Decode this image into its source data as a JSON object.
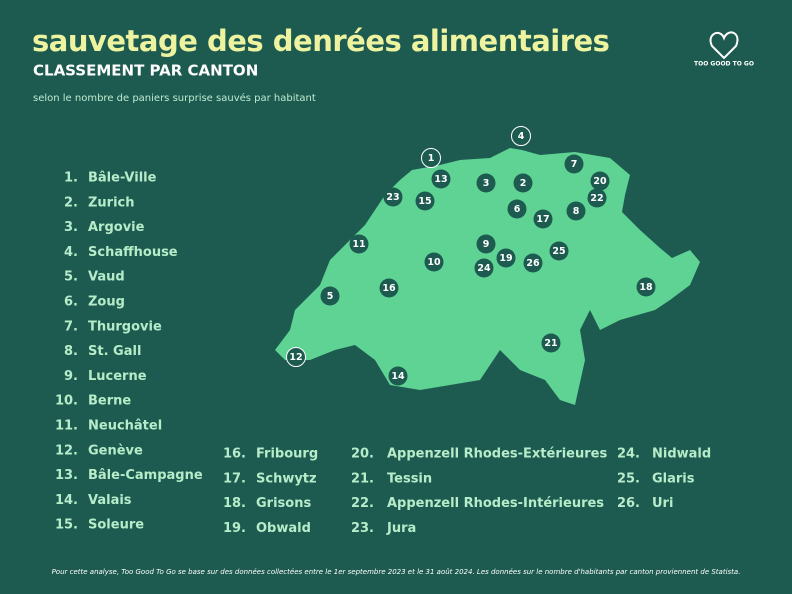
{
  "header": {
    "title": "sauvetage des denrées alimentaires",
    "subtitle": "CLASSEMENT PAR CANTON",
    "description": "selon le nombre de paniers surprise sauvés par habitant"
  },
  "logo": "TOO GOOD TO GO",
  "ranking": [
    {
      "rank": "1.",
      "name": "Bâle-Ville"
    },
    {
      "rank": "2.",
      "name": "Zurich"
    },
    {
      "rank": "3.",
      "name": "Argovie"
    },
    {
      "rank": "4.",
      "name": "Schaffhouse"
    },
    {
      "rank": "5.",
      "name": "Vaud"
    },
    {
      "rank": "6.",
      "name": "Zoug"
    },
    {
      "rank": "7.",
      "name": "Thurgovie"
    },
    {
      "rank": "8.",
      "name": "St. Gall"
    },
    {
      "rank": "9.",
      "name": "Lucerne"
    },
    {
      "rank": "10.",
      "name": "Berne"
    },
    {
      "rank": "11.",
      "name": "Neuchâtel"
    },
    {
      "rank": "12.",
      "name": "Genève"
    },
    {
      "rank": "13.",
      "name": "Bâle-Campagne"
    },
    {
      "rank": "14.",
      "name": "Valais"
    },
    {
      "rank": "15.",
      "name": "Soleure"
    },
    {
      "rank": "16.",
      "name": "Fribourg"
    },
    {
      "rank": "17.",
      "name": "Schwytz"
    },
    {
      "rank": "18.",
      "name": "Grisons"
    },
    {
      "rank": "19.",
      "name": "Obwald"
    },
    {
      "rank": "20.",
      "name": "Appenzell Rhodes-Extérieures"
    },
    {
      "rank": "21.",
      "name": "Tessin"
    },
    {
      "rank": "22.",
      "name": "Appenzell Rhodes-Intérieures"
    },
    {
      "rank": "23.",
      "name": "Jura"
    },
    {
      "rank": "24.",
      "name": "Nidwald"
    },
    {
      "rank": "25.",
      "name": "Glaris"
    },
    {
      "rank": "26.",
      "name": "Uri"
    }
  ],
  "map": {
    "markers": [
      "1",
      "2",
      "3",
      "4",
      "5",
      "6",
      "7",
      "8",
      "9",
      "10",
      "11",
      "12",
      "13",
      "14",
      "15",
      "16",
      "17",
      "18",
      "19",
      "20",
      "21",
      "22",
      "23",
      "24",
      "25",
      "26"
    ]
  },
  "footer": "Pour cette analyse, Too Good To Go se base sur des données collectées entre le 1er septembre 2023 et le 31 août 2024. Les données sur le nombre d'habitants par canton proviennent de Statista."
}
